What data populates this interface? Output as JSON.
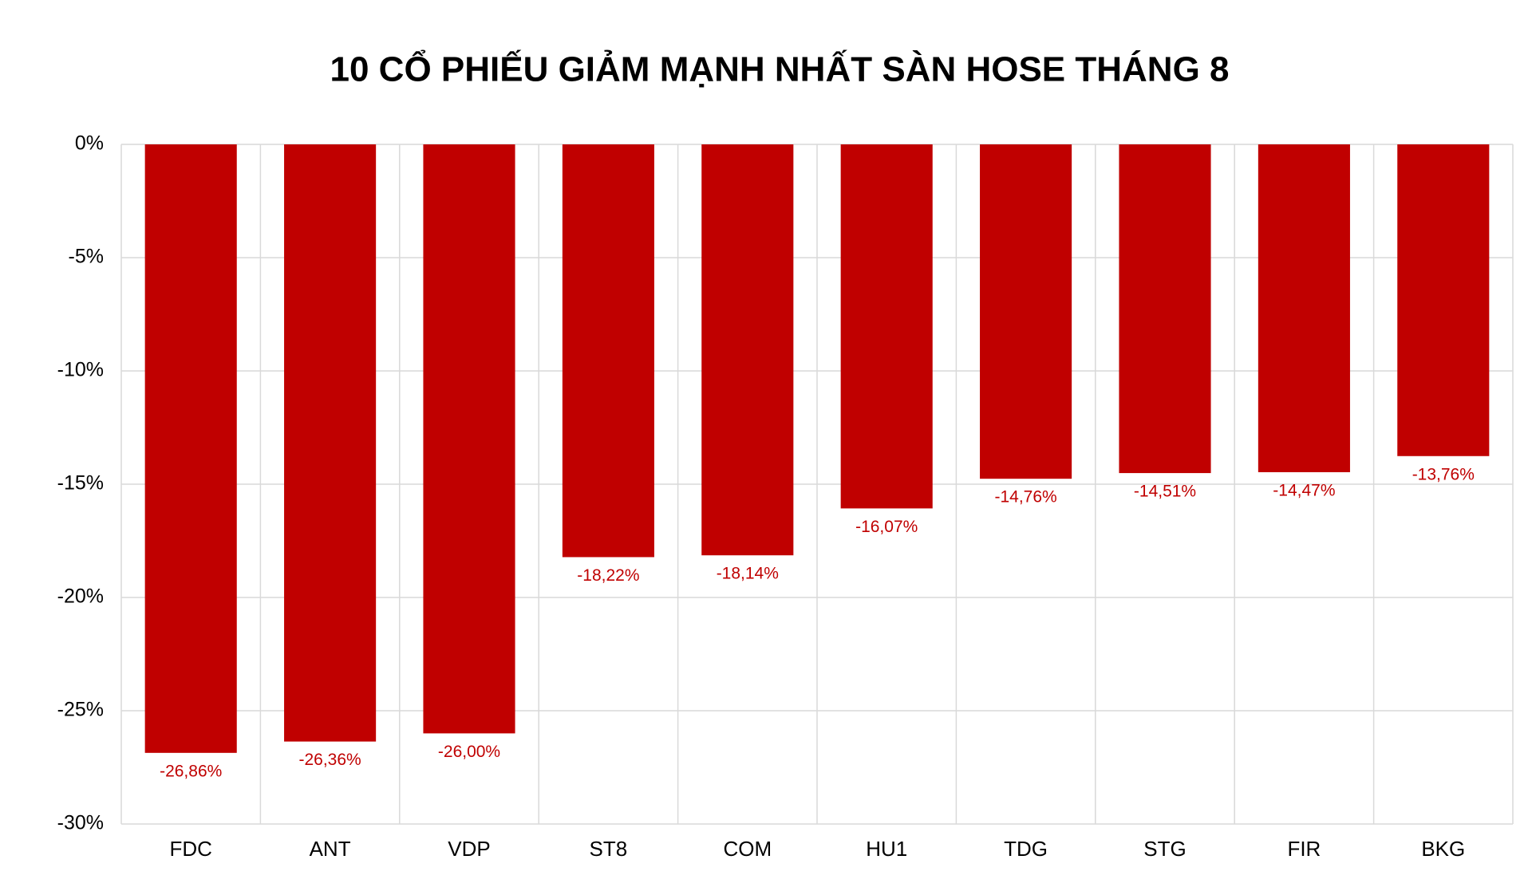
{
  "chart_data": {
    "type": "bar",
    "title": "10 CỔ PHIẾU GIẢM MẠNH NHẤT SÀN HOSE THÁNG 8",
    "categories": [
      "FDC",
      "ANT",
      "VDP",
      "ST8",
      "COM",
      "HU1",
      "TDG",
      "STG",
      "FIR",
      "BKG"
    ],
    "values": [
      -26.86,
      -26.36,
      -26.0,
      -18.22,
      -18.14,
      -16.07,
      -14.76,
      -14.51,
      -14.47,
      -13.76
    ],
    "value_labels": [
      "-26,86%",
      "-26,36%",
      "-26,00%",
      "-18,22%",
      "-18,14%",
      "-16,07%",
      "-14,76%",
      "-14,51%",
      "-14,47%",
      "-13,76%"
    ],
    "color": "#c00000",
    "ylim": [
      -30,
      0
    ],
    "yticks": [
      {
        "value": 0,
        "label": "0%"
      },
      {
        "value": -5,
        "label": "-5%"
      },
      {
        "value": -10,
        "label": "-10%"
      },
      {
        "value": -15,
        "label": "-15%"
      },
      {
        "value": -20,
        "label": "-20%"
      },
      {
        "value": -25,
        "label": "-25%"
      },
      {
        "value": -30,
        "label": "-30%"
      }
    ],
    "grid": true
  }
}
